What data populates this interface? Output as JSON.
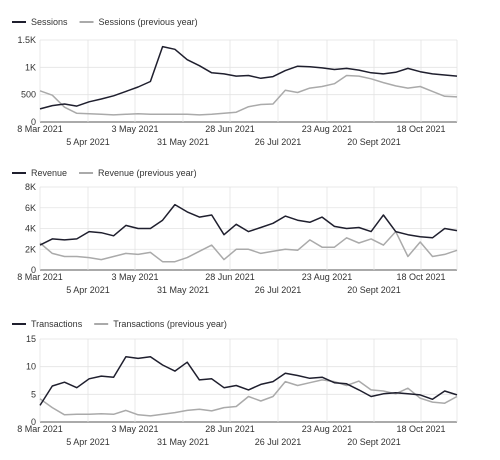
{
  "chart_data": [
    {
      "type": "line",
      "legend_position": "top-left",
      "grid": true,
      "ylim": [
        0,
        1500
      ],
      "yticks": [
        0,
        500,
        1000,
        1500
      ],
      "ytick_labels": [
        "0",
        "500",
        "1K",
        "1.5K"
      ],
      "xtick_labels_upper": [
        "8 Mar 2021",
        "3 May 2021",
        "28 Jun 2021",
        "23 Aug 2021",
        "18 Oct 2021"
      ],
      "xtick_labels_lower": [
        "5 Apr 2021",
        "31 May 2021",
        "26 Jul 2021",
        "20 Sept 2021"
      ],
      "series": [
        {
          "name": "Sessions",
          "color": "#1f1f2e",
          "values": [
            240,
            300,
            330,
            290,
            370,
            420,
            480,
            560,
            640,
            740,
            1380,
            1330,
            1140,
            1030,
            900,
            880,
            840,
            850,
            800,
            830,
            940,
            1020,
            1010,
            990,
            960,
            980,
            950,
            900,
            880,
            910,
            980,
            920,
            880,
            860,
            840
          ]
        },
        {
          "name": "Sessions (previous year)",
          "color": "#aaaaaa",
          "values": [
            570,
            490,
            270,
            160,
            150,
            140,
            130,
            140,
            150,
            140,
            140,
            140,
            140,
            130,
            140,
            160,
            180,
            280,
            320,
            330,
            580,
            540,
            620,
            650,
            700,
            850,
            840,
            790,
            720,
            660,
            620,
            650,
            560,
            470,
            460
          ]
        }
      ]
    },
    {
      "type": "line",
      "legend_position": "top-left",
      "grid": true,
      "ylim": [
        0,
        8000
      ],
      "yticks": [
        0,
        2000,
        4000,
        6000,
        8000
      ],
      "ytick_labels": [
        "0",
        "2K",
        "4K",
        "6K",
        "8K"
      ],
      "xtick_labels_upper": [
        "8 Mar 2021",
        "3 May 2021",
        "28 Jun 2021",
        "23 Aug 2021",
        "18 Oct 2021"
      ],
      "xtick_labels_lower": [
        "5 Apr 2021",
        "31 May 2021",
        "26 Jul 2021",
        "20 Sept 2021"
      ],
      "series": [
        {
          "name": "Revenue",
          "color": "#1f1f2e",
          "values": [
            2400,
            3000,
            2900,
            3000,
            3700,
            3600,
            3300,
            4300,
            4000,
            4000,
            4800,
            6300,
            5600,
            5100,
            5300,
            3400,
            4400,
            3700,
            4100,
            4500,
            5200,
            4800,
            4600,
            5100,
            4200,
            4000,
            4100,
            3700,
            5300,
            3700,
            3400,
            3200,
            3100,
            4000,
            3800
          ]
        },
        {
          "name": "Revenue (previous year)",
          "color": "#aaaaaa",
          "values": [
            2600,
            1600,
            1300,
            1300,
            1200,
            1000,
            1300,
            1600,
            1500,
            1700,
            800,
            800,
            1200,
            1800,
            2400,
            1000,
            2000,
            2000,
            1600,
            1800,
            2000,
            1900,
            2900,
            2200,
            2200,
            3100,
            2600,
            3000,
            2400,
            3700,
            1300,
            2700,
            1300,
            1500,
            1900
          ]
        }
      ]
    },
    {
      "type": "line",
      "legend_position": "top-left",
      "grid": true,
      "ylim": [
        0,
        15
      ],
      "yticks": [
        0,
        5,
        10,
        15
      ],
      "ytick_labels": [
        "0",
        "5",
        "10",
        "15"
      ],
      "xtick_labels_upper": [
        "8 Mar 2021",
        "3 May 2021",
        "28 Jun 2021",
        "23 Aug 2021",
        "18 Oct 2021"
      ],
      "xtick_labels_lower": [
        "5 Apr 2021",
        "31 May 2021",
        "26 Jul 2021",
        "20 Sept 2021"
      ],
      "series": [
        {
          "name": "Transactions",
          "color": "#1f1f2e",
          "values": [
            3,
            6.5,
            7.2,
            6.2,
            7.8,
            8.3,
            8.1,
            11.8,
            11.5,
            11.8,
            10.3,
            9.2,
            10.8,
            7.6,
            7.8,
            6.2,
            6.6,
            5.8,
            6.8,
            7.3,
            8.8,
            8.4,
            7.9,
            8.1,
            7.1,
            6.9,
            5.8,
            4.6,
            5.1,
            5.3,
            5.1,
            4.9,
            4.1,
            5.6,
            4.9
          ]
        },
        {
          "name": "Transactions (previous year)",
          "color": "#aaaaaa",
          "values": [
            4.2,
            2.6,
            1.3,
            1.4,
            1.4,
            1.5,
            1.4,
            2.1,
            1.3,
            1.1,
            1.4,
            1.7,
            2.1,
            2.3,
            2.0,
            2.6,
            2.8,
            4.6,
            3.8,
            4.6,
            7.3,
            6.6,
            7.1,
            7.6,
            7.3,
            6.6,
            7.4,
            5.8,
            5.6,
            5.1,
            6.1,
            4.3,
            3.6,
            3.4,
            4.6
          ]
        }
      ]
    }
  ]
}
